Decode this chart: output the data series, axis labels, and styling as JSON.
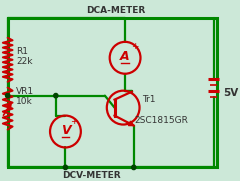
{
  "bg_color": "#cce8d8",
  "circuit_color": "#cc0000",
  "wire_color": "#008800",
  "dot_color": "#004400",
  "text_color": "#333333",
  "title_top": "DCA-METER",
  "title_bottom": "DCV-METER",
  "label_R1": "R1",
  "label_R1_val": "22k",
  "label_VR1": "VR1",
  "label_VR1_val": "10k",
  "label_Tr1": "Tr1",
  "label_Tr1_val": "2SC1815GR",
  "label_5V": "5V",
  "border_color": "#008800",
  "font_size": 6.5
}
